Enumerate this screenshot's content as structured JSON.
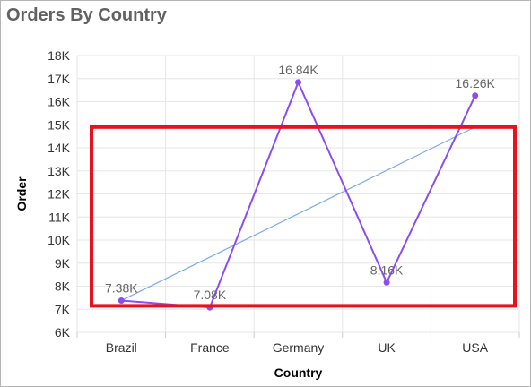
{
  "title": "Orders By Country",
  "colors": {
    "series": "#8b4cf2",
    "trendline": "#7aaaf0",
    "highlight": "#e8121e",
    "grid": "#e6e6e6"
  },
  "chart_data": {
    "type": "line",
    "title": "Orders By Country",
    "xlabel": "Country",
    "ylabel": "Order",
    "categories": [
      "Brazil",
      "France",
      "Germany",
      "UK",
      "USA"
    ],
    "series": [
      {
        "values": [
          7380,
          7080,
          16840,
          8160,
          16260
        ],
        "labels": [
          "7.38K",
          "7.08K",
          "16.84K",
          "8.16K",
          "16.26K"
        ]
      }
    ],
    "trendline": {
      "type": "linear",
      "start": 7380,
      "end": 14900
    },
    "highlight_range": {
      "from": 7150,
      "to": 14900,
      "color": "#e8121e"
    },
    "ylim": [
      6000,
      18000
    ],
    "yticks": [
      {
        "value": 6000,
        "label": "6K"
      },
      {
        "value": 7000,
        "label": "7K"
      },
      {
        "value": 8000,
        "label": "8K"
      },
      {
        "value": 9000,
        "label": "9K"
      },
      {
        "value": 10000,
        "label": "10K"
      },
      {
        "value": 11000,
        "label": "11K"
      },
      {
        "value": 12000,
        "label": "12K"
      },
      {
        "value": 13000,
        "label": "13K"
      },
      {
        "value": 14000,
        "label": "14K"
      },
      {
        "value": 15000,
        "label": "15K"
      },
      {
        "value": 16000,
        "label": "16K"
      },
      {
        "value": 17000,
        "label": "17K"
      },
      {
        "value": 18000,
        "label": "18K"
      }
    ],
    "grid": true,
    "legend": "none"
  }
}
